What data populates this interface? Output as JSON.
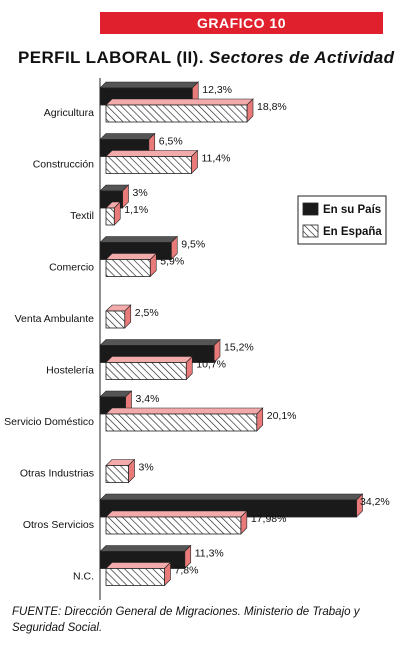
{
  "header": {
    "badge": "GRAFICO 10",
    "title_main": "PERFIL LABORAL (II).",
    "title_sub": "Sectores de Actividad"
  },
  "chart_data": {
    "type": "bar",
    "orientation": "horizontal",
    "categories": [
      "Agricultura",
      "Construcción",
      "Textil",
      "Comercio",
      "Venta Ambulante",
      "Hostelería",
      "Servicio Doméstico",
      "Otras Industrias",
      "Otros Servicios",
      "N.C."
    ],
    "series": [
      {
        "name": "En su País",
        "values": [
          12.3,
          6.5,
          3,
          9.5,
          null,
          15.2,
          3.4,
          null,
          34.2,
          11.3
        ],
        "labels": [
          "12,3%",
          "6,5%",
          "3%",
          "9,5%",
          "",
          "15,2%",
          "3,4%",
          "",
          "34,2%",
          "11,3%"
        ],
        "color": "#1a1a1a"
      },
      {
        "name": "En España",
        "values": [
          18.8,
          11.4,
          1.1,
          5.9,
          2.5,
          10.7,
          20.1,
          3,
          17.98,
          7.8
        ],
        "labels": [
          "18,8%",
          "11,4%",
          "1,1%",
          "5,9%",
          "2,5%",
          "10,7%",
          "20,1%",
          "3%",
          "17,98%",
          "7,8%"
        ],
        "color": "#e87a7a",
        "pattern": "diagonal-hatch"
      }
    ],
    "bar_style": "3d",
    "legend_placement": "right",
    "grid": false
  },
  "footer": {
    "source": "FUENTE: Dirección General de Migraciones. Ministerio de Trabajo y Seguridad Social."
  }
}
